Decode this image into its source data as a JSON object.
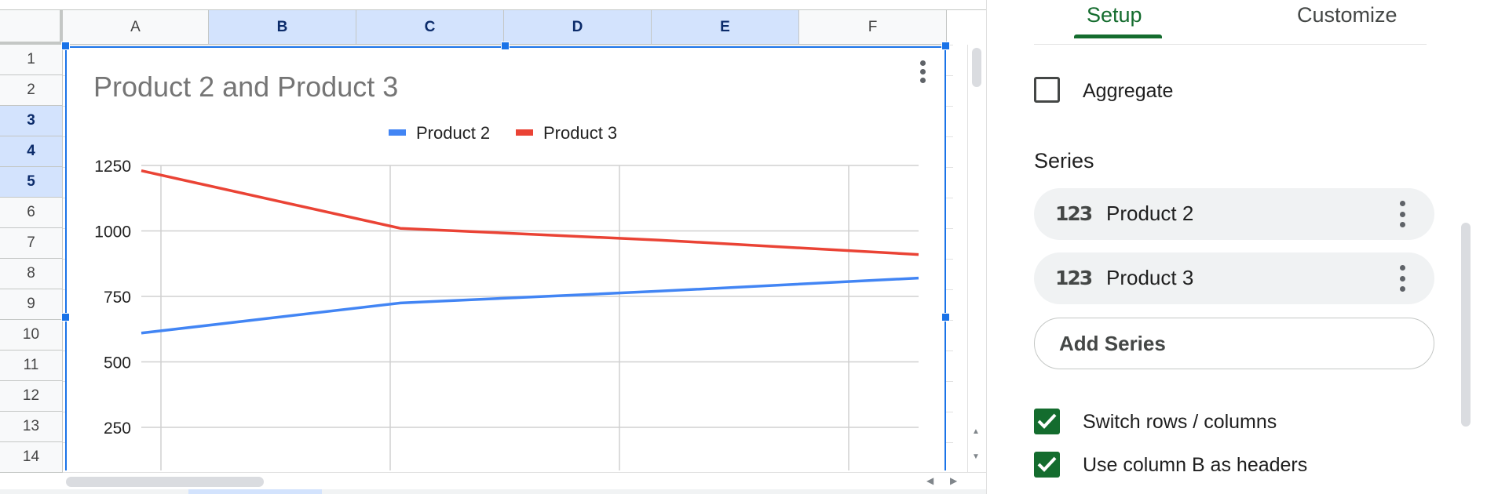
{
  "sheet": {
    "columns": [
      {
        "label": "A",
        "selected": false
      },
      {
        "label": "B",
        "selected": true
      },
      {
        "label": "C",
        "selected": true
      },
      {
        "label": "D",
        "selected": true
      },
      {
        "label": "E",
        "selected": true
      },
      {
        "label": "F",
        "selected": false
      }
    ],
    "rows": [
      {
        "label": "1",
        "selected": false
      },
      {
        "label": "2",
        "selected": false
      },
      {
        "label": "3",
        "selected": true
      },
      {
        "label": "4",
        "selected": true
      },
      {
        "label": "5",
        "selected": true
      },
      {
        "label": "6",
        "selected": false
      },
      {
        "label": "7",
        "selected": false
      },
      {
        "label": "8",
        "selected": false
      },
      {
        "label": "9",
        "selected": false
      },
      {
        "label": "10",
        "selected": false
      },
      {
        "label": "11",
        "selected": false
      },
      {
        "label": "12",
        "selected": false
      },
      {
        "label": "13",
        "selected": false
      },
      {
        "label": "14",
        "selected": false
      }
    ]
  },
  "chart_data": {
    "type": "line",
    "title": "Product 2 and Product 3",
    "legend_position": "top",
    "grid": true,
    "y_ticks": [
      "1250",
      "1000",
      "750",
      "500",
      "250"
    ],
    "y_tick_values": [
      1250,
      1000,
      750,
      500,
      250
    ],
    "x_count": 4,
    "series": [
      {
        "name": "Product 2",
        "color": "#4285f4",
        "values": [
          610,
          725,
          770,
          820
        ]
      },
      {
        "name": "Product 3",
        "color": "#ea4335",
        "values": [
          1230,
          1010,
          965,
          910
        ]
      }
    ]
  },
  "panel": {
    "tabs": {
      "setup": "Setup",
      "customize": "Customize"
    },
    "aggregate_label": "Aggregate",
    "aggregate_checked": false,
    "series_heading": "Series",
    "series_items": [
      {
        "icon": "123",
        "label": "Product 2"
      },
      {
        "icon": "123",
        "label": "Product 3"
      }
    ],
    "add_series_label": "Add Series",
    "switch_rows_label": "Switch rows / columns",
    "switch_rows_checked": true,
    "use_column_label": "Use column B as headers",
    "use_column_checked": true
  }
}
